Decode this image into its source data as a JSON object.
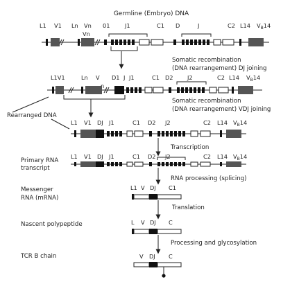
{
  "title": "Germline (Embryo) DNA",
  "colors": {
    "ink": "#222222",
    "exon": "#111111",
    "vgene": "#555555",
    "white": "#ffffff"
  },
  "gene_labels": {
    "row1": [
      "L1",
      "V1",
      "Ln",
      "Vn",
      "Vn",
      "01",
      "J1",
      "C1",
      "D",
      "J",
      "C2",
      "L14",
      "V",
      "B",
      "14"
    ],
    "row2": [
      "L1V1",
      "Ln",
      "V",
      "n",
      "D1",
      "J",
      "J1",
      "C1",
      "D2",
      "J2",
      "C2",
      "L14",
      "V",
      "B",
      "14"
    ],
    "row3": [
      "L1",
      "V1",
      "DJ",
      "J1",
      "C1",
      "D2",
      "J2",
      "C2",
      "L14",
      "V",
      "B",
      "14"
    ],
    "row4": [
      "L1",
      "V1",
      "DJ",
      "J1",
      "C1",
      "D2",
      "J2",
      "C2",
      "L14",
      "V",
      "B",
      "14"
    ],
    "row5": [
      "L1",
      "V",
      "DJ",
      "C1"
    ],
    "row6": [
      "L",
      "V",
      "DJ",
      "C"
    ],
    "row7": [
      "V",
      "DJ",
      "C"
    ]
  },
  "steps": {
    "dj1": "Somatic recombination",
    "dj2": "(DNA rearrangement) DJ joining",
    "vdj1": "Somatic recombination",
    "vdj2": "(DNA rearrangement) VDJ joining",
    "transcription": "Transcription",
    "splicing": "RNA processing (splicing)",
    "translation": "Translation",
    "glyco": "Processing and glycosylation"
  },
  "side_labels": {
    "rearranged": "Rearranged DNA",
    "primary1": "Primary RNA",
    "primary2": "transcript",
    "mrna1": "Messenger",
    "mrna2": "RNA (mRNA)",
    "nascent": "Nascent polypeptide",
    "tcr": "TCR B chain"
  }
}
